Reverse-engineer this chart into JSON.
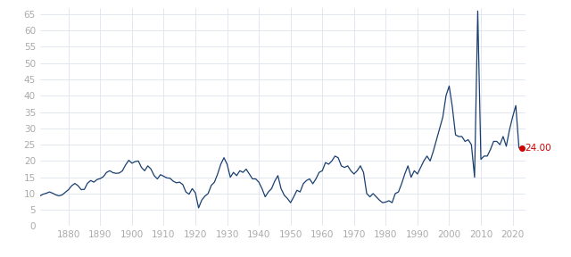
{
  "background_color": "#ffffff",
  "grid_color": "#dde3ef",
  "line_color": "#1a3f6f",
  "line_width": 0.9,
  "annotation_color": "#cc0000",
  "annotation_value": "24.00",
  "ylim": [
    0,
    67
  ],
  "yticks": [
    0,
    5,
    10,
    15,
    20,
    25,
    30,
    35,
    40,
    45,
    50,
    55,
    60,
    65
  ],
  "xticks": [
    1880,
    1890,
    1900,
    1910,
    1920,
    1930,
    1940,
    1950,
    1960,
    1970,
    1980,
    1990,
    2000,
    2010,
    2020
  ],
  "xlim": [
    1871,
    2024
  ],
  "data": [
    [
      1871,
      9.3
    ],
    [
      1872,
      9.8
    ],
    [
      1873,
      10.1
    ],
    [
      1874,
      10.5
    ],
    [
      1875,
      10.1
    ],
    [
      1876,
      9.6
    ],
    [
      1877,
      9.3
    ],
    [
      1878,
      9.6
    ],
    [
      1879,
      10.4
    ],
    [
      1880,
      11.2
    ],
    [
      1881,
      12.4
    ],
    [
      1882,
      13.1
    ],
    [
      1883,
      12.4
    ],
    [
      1884,
      11.2
    ],
    [
      1885,
      11.3
    ],
    [
      1886,
      13.2
    ],
    [
      1887,
      14.0
    ],
    [
      1888,
      13.5
    ],
    [
      1889,
      14.3
    ],
    [
      1890,
      14.6
    ],
    [
      1891,
      15.2
    ],
    [
      1892,
      16.5
    ],
    [
      1893,
      17.0
    ],
    [
      1894,
      16.4
    ],
    [
      1895,
      16.2
    ],
    [
      1896,
      16.3
    ],
    [
      1897,
      17.0
    ],
    [
      1898,
      18.8
    ],
    [
      1899,
      20.2
    ],
    [
      1900,
      19.3
    ],
    [
      1901,
      19.8
    ],
    [
      1902,
      20.0
    ],
    [
      1903,
      18.0
    ],
    [
      1904,
      17.0
    ],
    [
      1905,
      18.5
    ],
    [
      1906,
      17.5
    ],
    [
      1907,
      15.5
    ],
    [
      1908,
      14.5
    ],
    [
      1909,
      15.8
    ],
    [
      1910,
      15.3
    ],
    [
      1911,
      14.8
    ],
    [
      1912,
      14.7
    ],
    [
      1913,
      13.8
    ],
    [
      1914,
      13.3
    ],
    [
      1915,
      13.5
    ],
    [
      1916,
      12.8
    ],
    [
      1917,
      10.5
    ],
    [
      1918,
      9.8
    ],
    [
      1919,
      11.5
    ],
    [
      1920,
      10.2
    ],
    [
      1921,
      5.6
    ],
    [
      1922,
      8.0
    ],
    [
      1923,
      9.2
    ],
    [
      1924,
      10.0
    ],
    [
      1925,
      12.5
    ],
    [
      1926,
      13.5
    ],
    [
      1927,
      16.0
    ],
    [
      1928,
      19.0
    ],
    [
      1929,
      21.0
    ],
    [
      1930,
      19.0
    ],
    [
      1931,
      15.0
    ],
    [
      1932,
      16.5
    ],
    [
      1933,
      15.5
    ],
    [
      1934,
      17.0
    ],
    [
      1935,
      16.5
    ],
    [
      1936,
      17.5
    ],
    [
      1937,
      16.0
    ],
    [
      1938,
      14.5
    ],
    [
      1939,
      14.5
    ],
    [
      1940,
      13.5
    ],
    [
      1941,
      11.5
    ],
    [
      1942,
      9.0
    ],
    [
      1943,
      10.5
    ],
    [
      1944,
      11.5
    ],
    [
      1945,
      13.8
    ],
    [
      1946,
      15.5
    ],
    [
      1947,
      11.5
    ],
    [
      1948,
      9.5
    ],
    [
      1949,
      8.5
    ],
    [
      1950,
      7.2
    ],
    [
      1951,
      9.0
    ],
    [
      1952,
      11.0
    ],
    [
      1953,
      10.5
    ],
    [
      1954,
      13.0
    ],
    [
      1955,
      14.0
    ],
    [
      1956,
      14.5
    ],
    [
      1957,
      13.0
    ],
    [
      1958,
      14.5
    ],
    [
      1959,
      16.5
    ],
    [
      1960,
      17.0
    ],
    [
      1961,
      19.5
    ],
    [
      1962,
      19.0
    ],
    [
      1963,
      20.0
    ],
    [
      1964,
      21.5
    ],
    [
      1965,
      21.0
    ],
    [
      1966,
      18.5
    ],
    [
      1967,
      18.0
    ],
    [
      1968,
      18.5
    ],
    [
      1969,
      17.0
    ],
    [
      1970,
      16.0
    ],
    [
      1971,
      17.0
    ],
    [
      1972,
      18.5
    ],
    [
      1973,
      16.5
    ],
    [
      1974,
      10.0
    ],
    [
      1975,
      9.0
    ],
    [
      1976,
      10.0
    ],
    [
      1977,
      9.0
    ],
    [
      1978,
      8.0
    ],
    [
      1979,
      7.2
    ],
    [
      1980,
      7.4
    ],
    [
      1981,
      7.8
    ],
    [
      1982,
      7.2
    ],
    [
      1983,
      10.0
    ],
    [
      1984,
      10.5
    ],
    [
      1985,
      13.0
    ],
    [
      1986,
      16.0
    ],
    [
      1987,
      18.5
    ],
    [
      1988,
      15.0
    ],
    [
      1989,
      17.0
    ],
    [
      1990,
      16.0
    ],
    [
      1991,
      18.0
    ],
    [
      1992,
      20.0
    ],
    [
      1993,
      21.5
    ],
    [
      1994,
      20.0
    ],
    [
      1995,
      23.0
    ],
    [
      1996,
      26.5
    ],
    [
      1997,
      30.0
    ],
    [
      1998,
      33.5
    ],
    [
      1999,
      40.0
    ],
    [
      2000,
      43.0
    ],
    [
      2001,
      36.5
    ],
    [
      2002,
      28.0
    ],
    [
      2003,
      27.5
    ],
    [
      2004,
      27.5
    ],
    [
      2005,
      26.0
    ],
    [
      2006,
      26.5
    ],
    [
      2007,
      25.0
    ],
    [
      2008,
      15.0
    ],
    [
      2009,
      66.0
    ],
    [
      2010,
      20.5
    ],
    [
      2011,
      21.5
    ],
    [
      2012,
      21.5
    ],
    [
      2013,
      23.5
    ],
    [
      2014,
      26.0
    ],
    [
      2015,
      26.0
    ],
    [
      2016,
      25.0
    ],
    [
      2017,
      27.5
    ],
    [
      2018,
      24.5
    ],
    [
      2019,
      29.5
    ],
    [
      2020,
      33.5
    ],
    [
      2021,
      37.0
    ],
    [
      2022,
      24.0
    ],
    [
      2023,
      24.0
    ]
  ]
}
